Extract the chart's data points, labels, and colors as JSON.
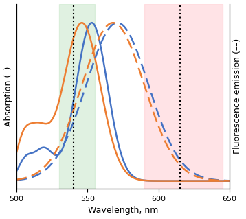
{
  "x_min": 500,
  "x_max": 650,
  "xlabel": "Wavelength, nm",
  "ylabel_left": "Absorption (–)",
  "ylabel_right": "Fluorescence emission (––)",
  "green_band": [
    530,
    555
  ],
  "green_vline": 540,
  "red_band": [
    590,
    645
  ],
  "red_vline": 615,
  "green_color": "#c8e6c9",
  "red_color": "#ffcdd2",
  "line_blue": "#4472c4",
  "line_orange": "#ed7d31",
  "figsize": [
    3.58,
    3.19
  ],
  "dpi": 100,
  "abs_blue_params": {
    "main_mu": 553,
    "main_sig": 11,
    "main_amp": 1.0,
    "sec_mu": 519,
    "sec_sig": 7,
    "sec_amp": 0.2,
    "base_mu": 506,
    "base_sig": 5,
    "base_amp": 0.12
  },
  "abs_orange_params": {
    "main_mu": 546,
    "main_sig": 13,
    "main_amp": 1.0,
    "sec_mu": 514,
    "sec_sig": 8,
    "sec_amp": 0.3,
    "base_mu": 504,
    "base_sig": 5,
    "base_amp": 0.16
  },
  "em_blue_params": {
    "mu": 571,
    "sig": 22,
    "amp": 1.0
  },
  "em_orange_params": {
    "mu": 568,
    "sig": 22,
    "amp": 1.0
  },
  "ylim": [
    -0.05,
    1.12
  ],
  "linewidth": 1.8,
  "alpha_band": 0.55
}
